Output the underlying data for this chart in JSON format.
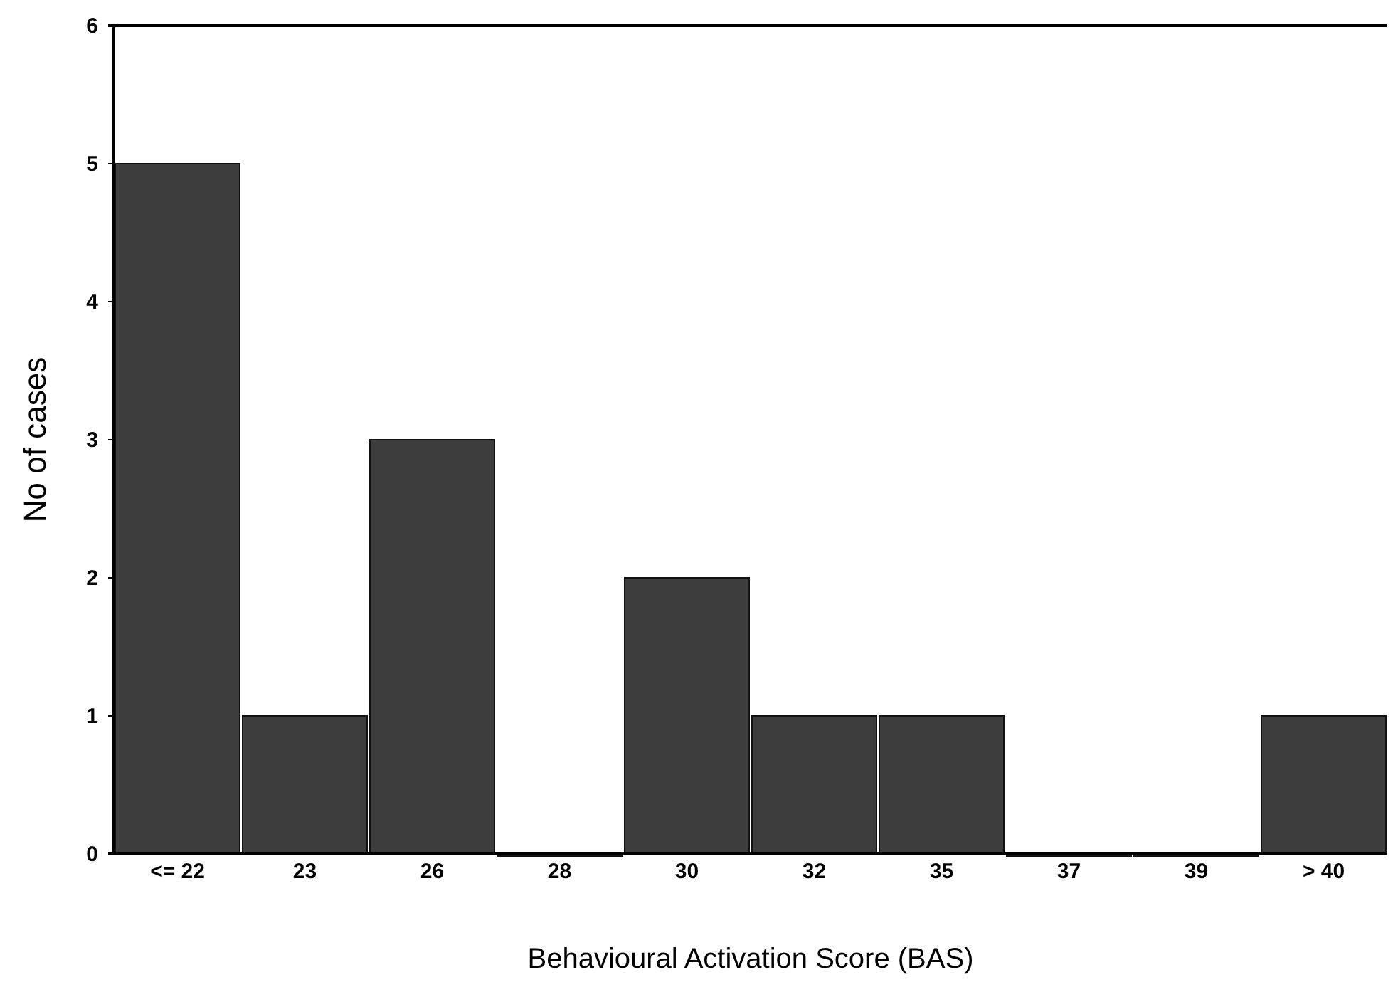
{
  "chart_data": {
    "type": "bar",
    "xlabel": "Behavioural Activation Score (BAS)",
    "ylabel": "No of cases",
    "categories": [
      "<= 22",
      "23",
      "26",
      "28",
      "30",
      "32",
      "35",
      "37",
      "39",
      "> 40"
    ],
    "values": [
      5,
      1,
      3,
      0,
      2,
      1,
      1,
      0,
      0,
      1
    ],
    "color": "#3d3d3d",
    "ylim": [
      0,
      6
    ],
    "yticks": [
      0,
      1,
      2,
      3,
      4,
      5,
      6
    ],
    "grid": false
  }
}
